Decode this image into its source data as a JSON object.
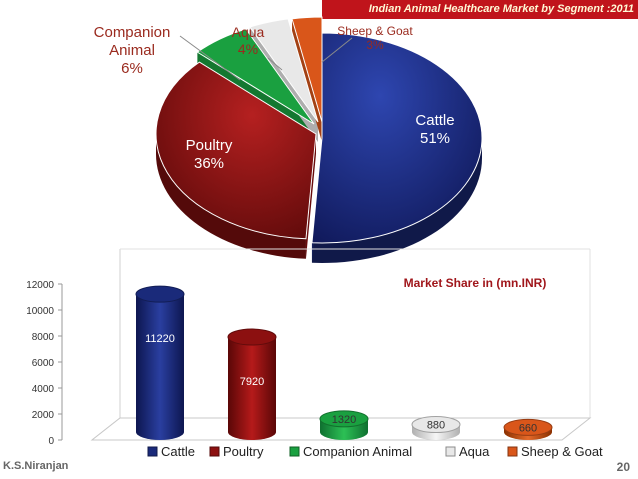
{
  "banner_title": "Indian Animal Healthcare  Market by Segment :2011",
  "footer": {
    "author": "K.S.Niranjan",
    "page": "20"
  },
  "chart_data": [
    {
      "type": "pie",
      "title": "Indian Animal Healthcare  Market by Segment :2011",
      "slices": [
        {
          "label": "Cattle",
          "value": 51,
          "value_label": "51%",
          "color": "#1a2a7a"
        },
        {
          "label": "Poultry",
          "value": 36,
          "value_label": "36%",
          "color": "#8c1010"
        },
        {
          "label": "Companion\nAnimal",
          "value": 6,
          "value_label": "6%",
          "color": "#1aa040"
        },
        {
          "label": "Aqua",
          "value": 4,
          "value_label": "4%",
          "color": "#e8e8e8"
        },
        {
          "label": "Sheep & Goat",
          "value": 3,
          "value_label": "3%",
          "color": "#d9561a"
        }
      ],
      "three_d": true
    },
    {
      "type": "bar",
      "title": "Market Share in (mn.INR)",
      "categories": [
        "Cattle",
        "Poultry",
        "Companion Animal",
        "Aqua",
        "Sheep & Goat"
      ],
      "values": [
        11220,
        7920,
        1320,
        880,
        660
      ],
      "value_labels": [
        "11220",
        "7920",
        "1320",
        "880",
        "660"
      ],
      "colors": [
        "#1a2a7a",
        "#8c1010",
        "#1aa040",
        "#e8e8e8",
        "#d9561a"
      ],
      "ylim": [
        0,
        12000
      ],
      "yticks": [
        "0",
        "2000",
        "4000",
        "6000",
        "8000",
        "10000",
        "12000"
      ],
      "three_d": true,
      "grid": false,
      "legend": "bottom"
    }
  ]
}
